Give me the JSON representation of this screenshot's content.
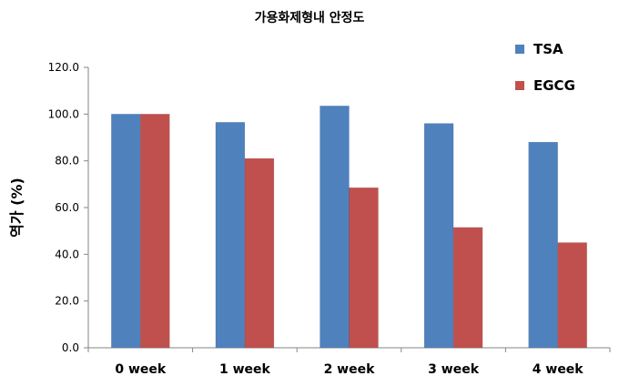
{
  "chart_data": {
    "type": "bar",
    "title": "가용화제형내 안정도",
    "xlabel": "",
    "ylabel": "역가 (%)",
    "categories": [
      "0 week",
      "1 week",
      "2 week",
      "3 week",
      "4 week"
    ],
    "series": [
      {
        "name": "TSA",
        "color": "#4f81bd",
        "values": [
          100.0,
          96.5,
          103.5,
          96.0,
          88.0
        ]
      },
      {
        "name": "EGCG",
        "color": "#c0504d",
        "values": [
          100.0,
          81.0,
          68.5,
          51.5,
          45.0
        ]
      }
    ],
    "ylim": [
      0,
      120
    ],
    "yticks": [
      "0.0",
      "20.0",
      "40.0",
      "60.0",
      "80.0",
      "100.0",
      "120.0"
    ],
    "grid": false,
    "legend_position": "top-right"
  }
}
